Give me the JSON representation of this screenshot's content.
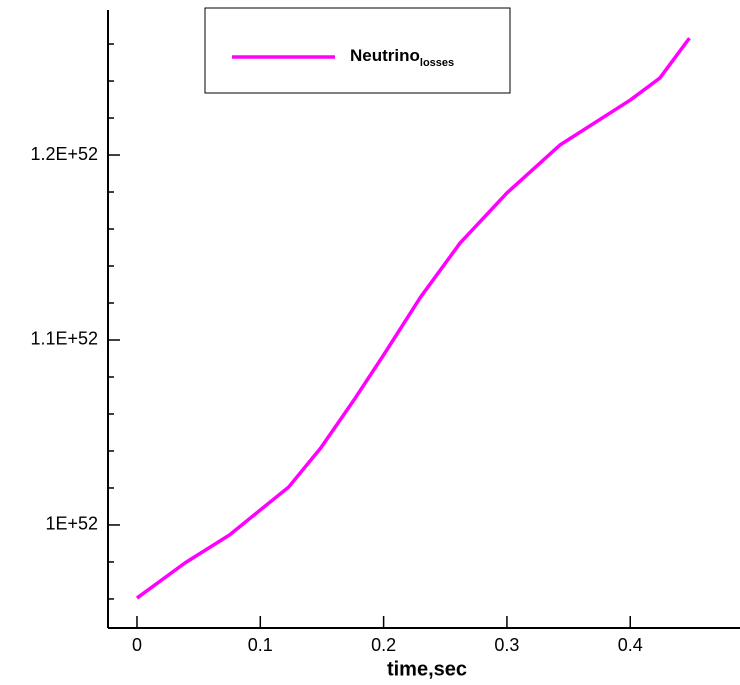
{
  "chart_data": {
    "type": "line",
    "x_label": "time,sec",
    "x": [
      0,
      0.039,
      0.075,
      0.1,
      0.123,
      0.149,
      0.177,
      0.2,
      0.23,
      0.262,
      0.3,
      0.343,
      0.4,
      0.424,
      0.448
    ],
    "series": [
      {
        "name": "Neutrino",
        "name_subscript": "losses",
        "color": "#ff00ff",
        "values": [
          9.605e+51,
          9.795e+51,
          9.946e+51,
          1.0081e+52,
          1.0205e+52,
          1.0416e+52,
          1.0686e+52,
          1.0919e+52,
          1.1232e+52,
          1.1524e+52,
          1.1795e+52,
          1.2054e+52,
          1.2297e+52,
          1.2416e+52,
          1.2632e+52
        ]
      }
    ],
    "xlim": [
      -0.0235,
      0.489
    ],
    "xticks": [
      0,
      0.1,
      0.2,
      0.3,
      0.4
    ],
    "ylim": [
      9.443e+51,
      1.2784e+52
    ],
    "yticks": [
      {
        "value": 1e+52,
        "label": "1E+52"
      },
      {
        "value": 1.1e+52,
        "label": "1.1E+52"
      },
      {
        "value": 1.2e+52,
        "label": "1.2E+52"
      }
    ],
    "yminorticks": [
      9.6e+51,
      9.8e+51,
      1.02e+52,
      1.04e+52,
      1.06e+52,
      1.08e+52,
      1.12e+52,
      1.14e+52,
      1.16e+52,
      1.18e+52,
      1.22e+52,
      1.24e+52,
      1.26e+52
    ],
    "grid": false
  }
}
